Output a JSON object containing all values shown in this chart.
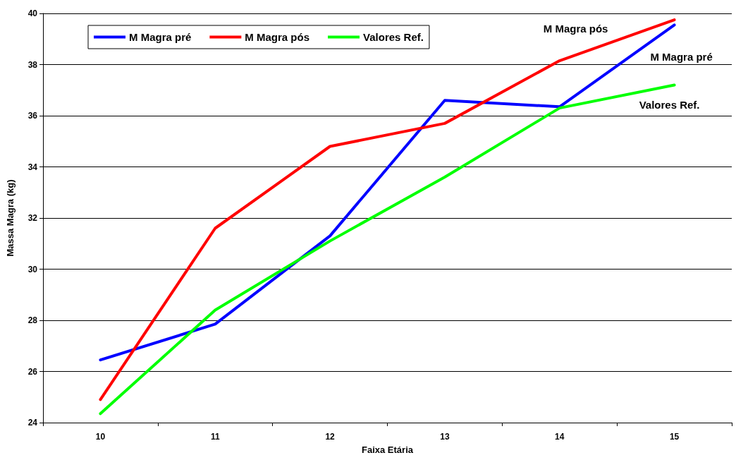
{
  "chart_data": {
    "type": "line",
    "xlabel": "Faixa Etária",
    "ylabel": "Massa Magra (kg)",
    "categories": [
      "10",
      "11",
      "12",
      "13",
      "14",
      "15"
    ],
    "series": [
      {
        "name": "M Magra pré",
        "color": "#0000ff",
        "values": [
          26.45,
          27.85,
          31.3,
          36.6,
          36.35,
          39.55
        ]
      },
      {
        "name": "M Magra pós",
        "color": "#ff0000",
        "values": [
          24.9,
          31.6,
          34.8,
          35.7,
          38.15,
          39.75
        ]
      },
      {
        "name": "Valores Ref.",
        "color": "#00ff00",
        "values": [
          24.35,
          28.4,
          31.1,
          33.6,
          36.3,
          37.2
        ]
      }
    ],
    "ylim": [
      24,
      40
    ],
    "yticks": [
      24,
      26,
      28,
      30,
      32,
      34,
      36,
      38,
      40
    ],
    "grid": "y",
    "legend": "top left",
    "marker": "none",
    "line_style": "solid"
  }
}
